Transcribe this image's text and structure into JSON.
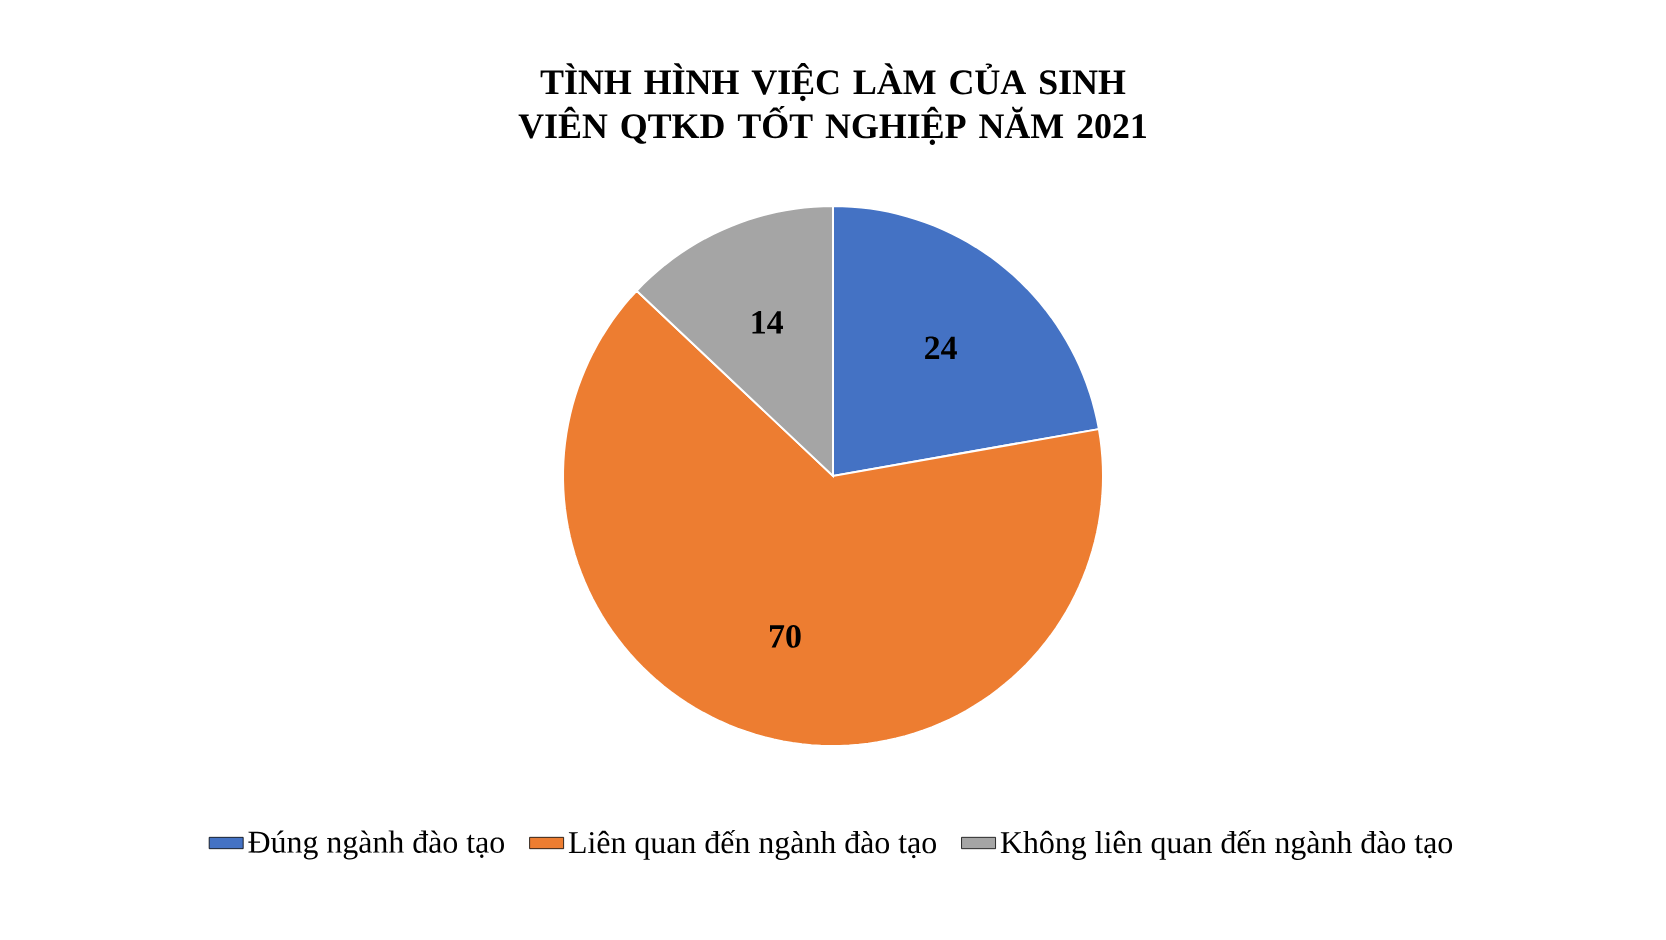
{
  "chart_data": {
    "type": "pie",
    "title": "TÌNH HÌNH VIỆC LÀM CỦA SINH VIÊN QTKD TỐT NGHIỆP NĂM 2021",
    "categories": [
      "Đúng ngành đào tạo",
      "Liên quan đến ngành đào tạo",
      "Không liên quan đến ngành đào tạo"
    ],
    "values": [
      24,
      70,
      14
    ],
    "colors": [
      "#4472c4",
      "#ed7d31",
      "#a5a5a5"
    ],
    "data_labels": true,
    "legend": "bottom"
  }
}
